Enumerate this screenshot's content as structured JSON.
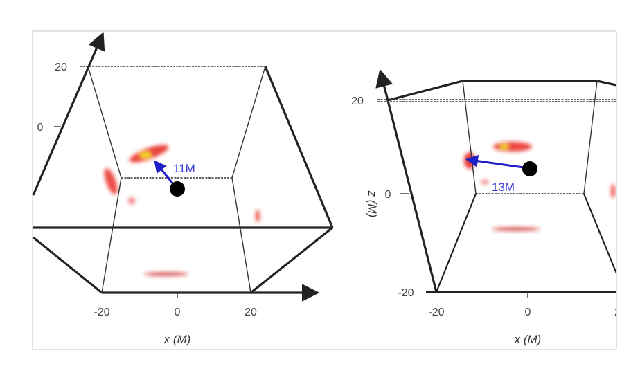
{
  "figure": {
    "left_panel": {
      "vertical_ticks": [
        "20",
        "0"
      ],
      "x_ticks": [
        "-20",
        "0",
        "20"
      ],
      "x_label": "x (M)",
      "distance_label": "11M"
    },
    "right_panel": {
      "z_ticks": [
        "20",
        "0",
        "-20"
      ],
      "z_label": "z (M)",
      "x_ticks": [
        "-20",
        "0",
        "2"
      ],
      "x_label": "x (M)",
      "distance_label": "13M"
    },
    "colors": {
      "arrow": "#1f1fc8",
      "emission": "#e8231c",
      "emission_peak": "#f5e020",
      "black_hole": "#000000"
    }
  }
}
